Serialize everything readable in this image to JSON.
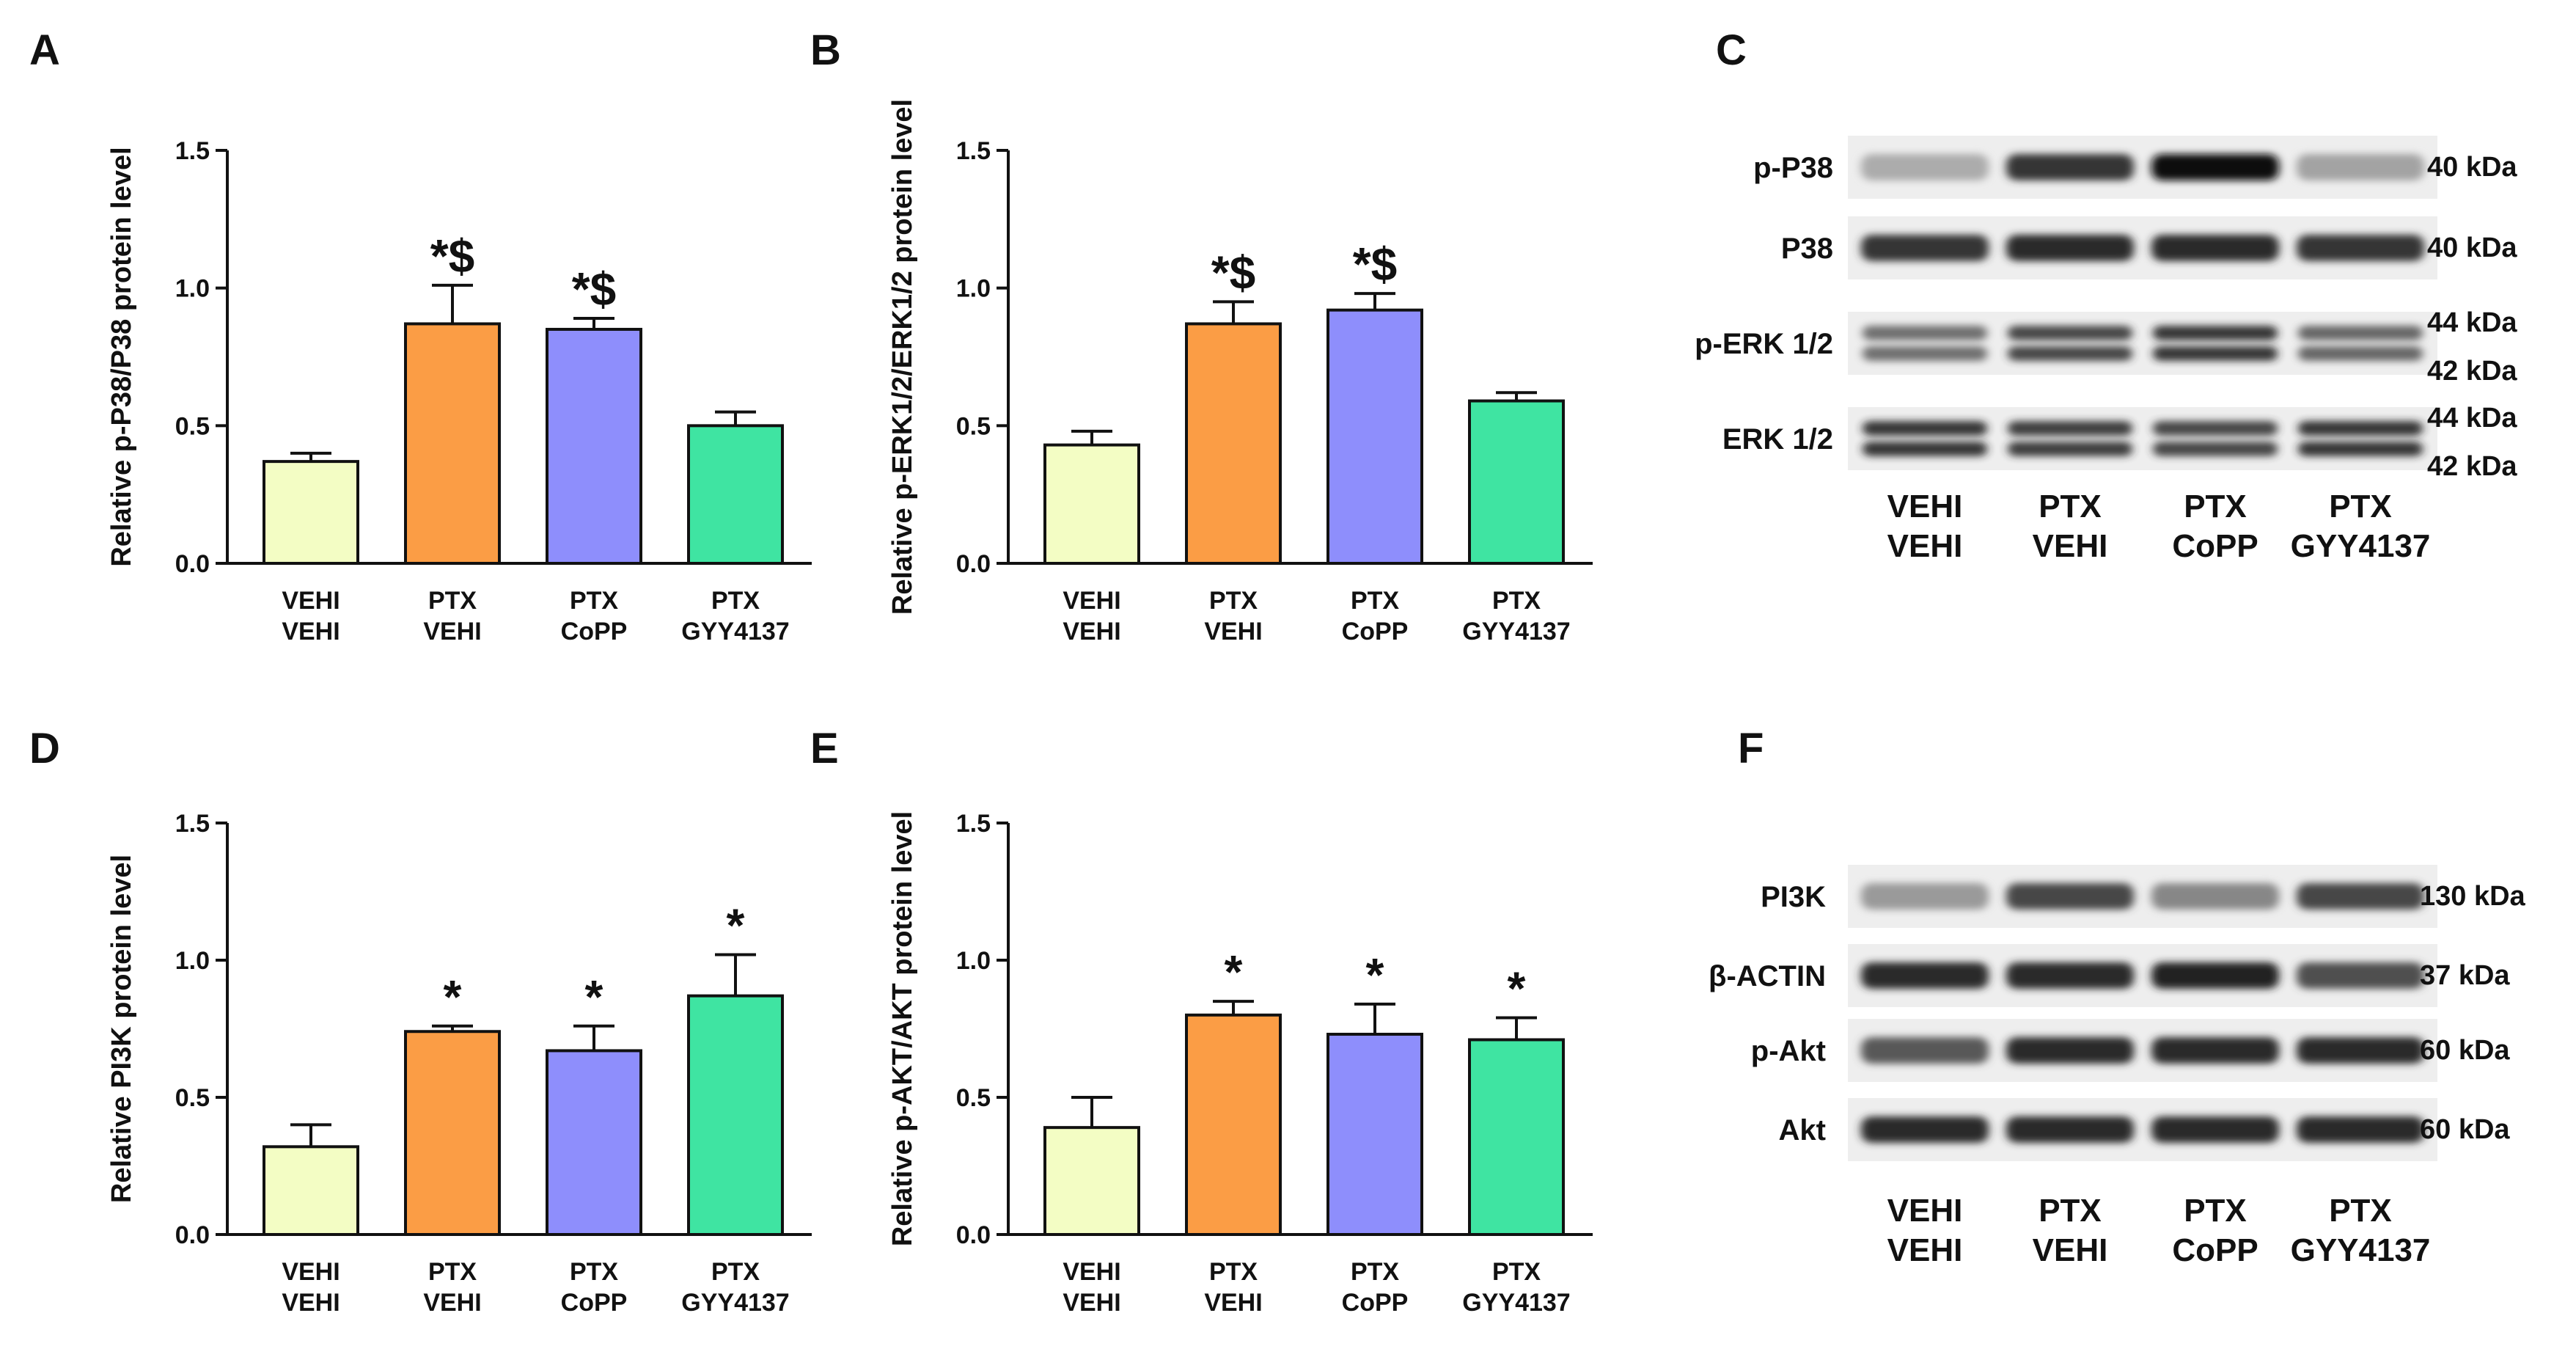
{
  "chart_data": [
    {
      "panel": "A",
      "type": "bar",
      "ylabel": "Relative p-P38/P38 protein level",
      "ylim": [
        0,
        1.5
      ],
      "yticks": [
        "0.0",
        "0.5",
        "1.0",
        "1.5"
      ],
      "categories": [
        [
          "VEHI",
          "VEHI"
        ],
        [
          "PTX",
          "VEHI"
        ],
        [
          "PTX",
          "CoPP"
        ],
        [
          "PTX",
          "GYY4137"
        ]
      ],
      "values": [
        0.37,
        0.87,
        0.85,
        0.5
      ],
      "errors": [
        0.03,
        0.14,
        0.04,
        0.05
      ],
      "significance": [
        "",
        "*$",
        "*$",
        ""
      ],
      "colors": [
        "#f3fdc4",
        "#fb9d45",
        "#8e8efc",
        "#3fe4a2"
      ]
    },
    {
      "panel": "B",
      "type": "bar",
      "ylabel": "Relative p-ERK1/2/ERK1/2 protein level",
      "ylim": [
        0,
        1.5
      ],
      "yticks": [
        "0.0",
        "0.5",
        "1.0",
        "1.5"
      ],
      "categories": [
        [
          "VEHI",
          "VEHI"
        ],
        [
          "PTX",
          "VEHI"
        ],
        [
          "PTX",
          "CoPP"
        ],
        [
          "PTX",
          "GYY4137"
        ]
      ],
      "values": [
        0.43,
        0.87,
        0.92,
        0.59
      ],
      "errors": [
        0.05,
        0.08,
        0.06,
        0.03
      ],
      "significance": [
        "",
        "*$",
        "*$",
        ""
      ],
      "colors": [
        "#f3fdc4",
        "#fb9d45",
        "#8e8efc",
        "#3fe4a2"
      ]
    },
    {
      "panel": "D",
      "type": "bar",
      "ylabel": "Relative PI3K protein level",
      "ylim": [
        0,
        1.5
      ],
      "yticks": [
        "0.0",
        "0.5",
        "1.0",
        "1.5"
      ],
      "categories": [
        [
          "VEHI",
          "VEHI"
        ],
        [
          "PTX",
          "VEHI"
        ],
        [
          "PTX",
          "CoPP"
        ],
        [
          "PTX",
          "GYY4137"
        ]
      ],
      "values": [
        0.32,
        0.74,
        0.67,
        0.87
      ],
      "errors": [
        0.08,
        0.02,
        0.09,
        0.15
      ],
      "significance": [
        "",
        "*",
        "*",
        "*"
      ],
      "colors": [
        "#f3fdc4",
        "#fb9d45",
        "#8e8efc",
        "#3fe4a2"
      ]
    },
    {
      "panel": "E",
      "type": "bar",
      "ylabel": "Relative p-AKT/AKT protein level",
      "ylim": [
        0,
        1.5
      ],
      "yticks": [
        "0.0",
        "0.5",
        "1.0",
        "1.5"
      ],
      "categories": [
        [
          "VEHI",
          "VEHI"
        ],
        [
          "PTX",
          "VEHI"
        ],
        [
          "PTX",
          "CoPP"
        ],
        [
          "PTX",
          "GYY4137"
        ]
      ],
      "values": [
        0.39,
        0.8,
        0.73,
        0.71
      ],
      "errors": [
        0.11,
        0.05,
        0.11,
        0.08
      ],
      "significance": [
        "",
        "*",
        "*",
        "*"
      ],
      "colors": [
        "#f3fdc4",
        "#fb9d45",
        "#8e8efc",
        "#3fe4a2"
      ]
    }
  ],
  "blots": [
    {
      "panel": "C",
      "rows": [
        {
          "label": "p-P38",
          "kda": [
            "40 kDa"
          ],
          "intensity": [
            0.15,
            0.8,
            1.0,
            0.2
          ]
        },
        {
          "label": "P38",
          "kda": [
            "40 kDa"
          ],
          "intensity": [
            0.8,
            0.85,
            0.85,
            0.8
          ]
        },
        {
          "label": "p-ERK 1/2",
          "kda": [
            "44 kDa",
            "42 kDa"
          ],
          "intensity": [
            0.55,
            0.8,
            0.9,
            0.6
          ]
        },
        {
          "label": "ERK 1/2",
          "kda": [
            "44 kDa",
            "42 kDa"
          ],
          "intensity": [
            0.9,
            0.85,
            0.8,
            0.9
          ]
        }
      ],
      "categories": [
        [
          "VEHI",
          "VEHI"
        ],
        [
          "PTX",
          "VEHI"
        ],
        [
          "PTX",
          "CoPP"
        ],
        [
          "PTX",
          "GYY4137"
        ]
      ]
    },
    {
      "panel": "F",
      "rows": [
        {
          "label": "PI3K",
          "kda": [
            "130 kDa"
          ],
          "intensity": [
            0.25,
            0.7,
            0.35,
            0.7
          ]
        },
        {
          "label": "β-ACTIN",
          "kda": [
            "37 kDa"
          ],
          "intensity": [
            0.85,
            0.85,
            0.9,
            0.65
          ]
        },
        {
          "label": "p-Akt",
          "kda": [
            "60 kDa"
          ],
          "intensity": [
            0.6,
            0.85,
            0.85,
            0.85
          ]
        },
        {
          "label": "Akt",
          "kda": [
            "60 kDa"
          ],
          "intensity": [
            0.85,
            0.85,
            0.85,
            0.85
          ]
        }
      ],
      "categories": [
        [
          "VEHI",
          "VEHI"
        ],
        [
          "PTX",
          "VEHI"
        ],
        [
          "PTX",
          "CoPP"
        ],
        [
          "PTX",
          "GYY4137"
        ]
      ]
    }
  ]
}
